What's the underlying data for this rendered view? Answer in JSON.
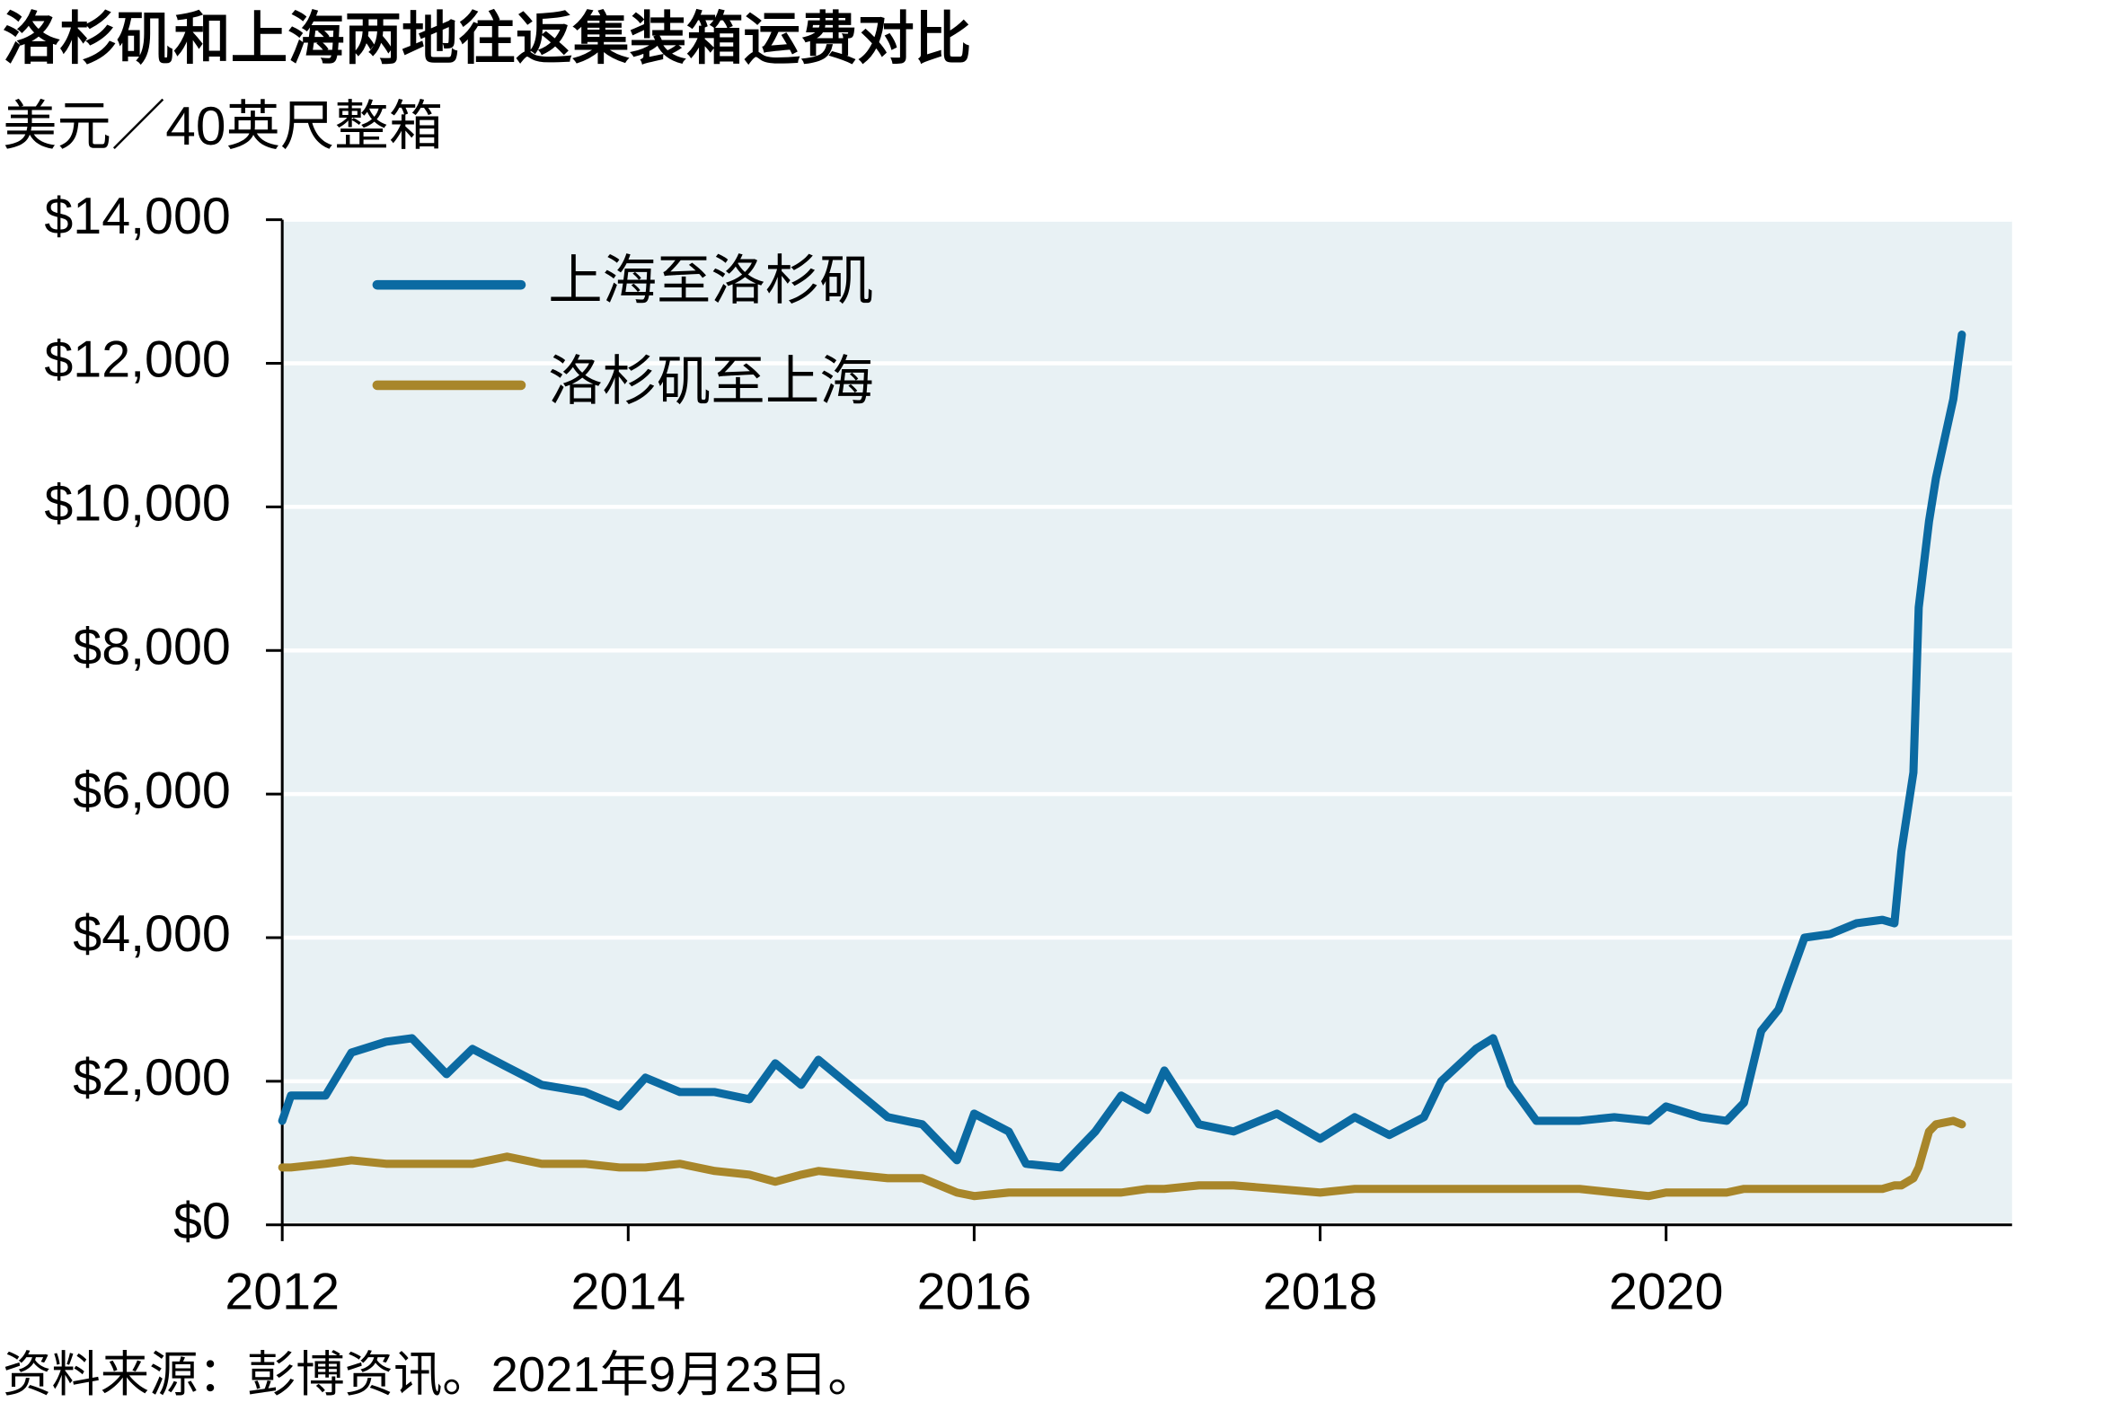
{
  "chart_data": {
    "type": "line",
    "title": "洛杉矶和上海两地往返集装箱运费对比",
    "subtitle": "美元／40英尺整箱",
    "note": "资料来源：彭博资讯。2021年9月23日。",
    "x": [
      2012.0,
      2012.05,
      2012.25,
      2012.4,
      2012.6,
      2012.75,
      2012.95,
      2013.1,
      2013.3,
      2013.5,
      2013.75,
      2013.95,
      2014.1,
      2014.3,
      2014.5,
      2014.7,
      2014.85,
      2015.0,
      2015.1,
      2015.3,
      2015.5,
      2015.7,
      2015.9,
      2016.0,
      2016.2,
      2016.3,
      2016.5,
      2016.7,
      2016.85,
      2017.0,
      2017.1,
      2017.3,
      2017.5,
      2017.75,
      2018.0,
      2018.2,
      2018.4,
      2018.6,
      2018.7,
      2018.9,
      2019.0,
      2019.1,
      2019.25,
      2019.5,
      2019.7,
      2019.9,
      2020.0,
      2020.2,
      2020.35,
      2020.45,
      2020.55,
      2020.65,
      2020.8,
      2020.95,
      2021.1,
      2021.25,
      2021.32,
      2021.36,
      2021.43,
      2021.46,
      2021.52,
      2021.56,
      2021.66,
      2021.71
    ],
    "series": [
      {
        "name": "上海至洛杉矶",
        "color": "#0b6aa2",
        "values": [
          1450,
          1800,
          1800,
          2400,
          2550,
          2600,
          2100,
          2450,
          2200,
          1950,
          1850,
          1650,
          2050,
          1850,
          1850,
          1750,
          2250,
          1950,
          2300,
          1900,
          1500,
          1400,
          900,
          1550,
          1300,
          850,
          800,
          1300,
          1800,
          1600,
          2150,
          1400,
          1300,
          1550,
          1200,
          1500,
          1250,
          1500,
          2000,
          2450,
          2600,
          1950,
          1450,
          1450,
          1500,
          1450,
          1650,
          1500,
          1450,
          1700,
          2700,
          3000,
          4000,
          4050,
          4200,
          4250,
          4200,
          5200,
          6300,
          8600,
          9800,
          10400,
          11500,
          12400
        ]
      },
      {
        "name": "洛杉矶至上海",
        "color": "#a8862a",
        "values": [
          800,
          800,
          850,
          900,
          850,
          850,
          850,
          850,
          950,
          850,
          850,
          800,
          800,
          850,
          750,
          700,
          600,
          700,
          750,
          700,
          650,
          650,
          450,
          400,
          450,
          450,
          450,
          450,
          450,
          500,
          500,
          550,
          550,
          500,
          450,
          500,
          500,
          500,
          500,
          500,
          500,
          500,
          500,
          500,
          450,
          400,
          450,
          450,
          450,
          500,
          500,
          500,
          500,
          500,
          500,
          500,
          550,
          550,
          650,
          800,
          1300,
          1400,
          1450,
          1400
        ]
      }
    ],
    "xlim": [
      2012,
      2022
    ],
    "xticks": [
      2012,
      2014,
      2016,
      2018,
      2020
    ],
    "ylim": [
      0,
      14000
    ],
    "yticks": [
      {
        "value": 0,
        "label": "$0"
      },
      {
        "value": 2000,
        "label": "$2,000"
      },
      {
        "value": 4000,
        "label": "$4,000"
      },
      {
        "value": 6000,
        "label": "$6,000"
      },
      {
        "value": 8000,
        "label": "$8,000"
      },
      {
        "value": 10000,
        "label": "$10,000"
      },
      {
        "value": 12000,
        "label": "$12,000"
      },
      {
        "value": 14000,
        "label": "$14,000"
      }
    ],
    "grid": true,
    "legend": "upper left",
    "background": "#e8f1f4"
  }
}
